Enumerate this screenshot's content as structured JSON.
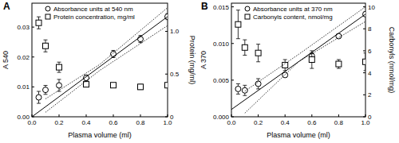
{
  "chart_data": [
    {
      "type": "scatter",
      "title": "A",
      "x_label": "Plasma volume (ml)",
      "y_label": "A 540",
      "y2_label": "Protein (mg/ml)",
      "xlim": [
        0,
        1
      ],
      "xticks": [
        {
          "value": 0,
          "label": "0.0"
        },
        0.2,
        0.4,
        0.6,
        0.8,
        {
          "value": 1,
          "label": "1.0"
        }
      ],
      "ylim": [
        0,
        0.038
      ],
      "yticks": [
        {
          "value": 0,
          "label": "0.00"
        },
        0.01,
        0.02,
        0.03
      ],
      "y2lim": [
        0,
        1.33
      ],
      "y2ticks": [
        0,
        0.5,
        {
          "value": 1,
          "label": "1.0"
        }
      ],
      "legend": "upper left",
      "series": [
        {
          "name": "Absorbance units at 540 nm",
          "marker": "circle",
          "color": "#000000",
          "x": [
            0.05,
            0.1,
            0.2,
            0.4,
            0.6,
            0.8,
            1.0
          ],
          "values": [
            0.0065,
            0.009,
            0.0105,
            0.013,
            0.021,
            0.026,
            0.0335
          ],
          "errors": [
            0.002,
            0.0015,
            0.002,
            0.001,
            0.0012,
            0.0012,
            0.001
          ]
        },
        {
          "name": "Protein concentration, mg/ml",
          "marker": "square",
          "color": "#000000",
          "axis": "y2",
          "x": [
            0.05,
            0.1,
            0.2,
            0.4,
            0.6,
            0.8,
            1.0
          ],
          "values": [
            1.1,
            0.83,
            0.58,
            0.38,
            0.37,
            0.35,
            0.37
          ],
          "errors": [
            0.07,
            0.07,
            0.06,
            0.03,
            0.02,
            0.03,
            0.02
          ]
        },
        {
          "type": "line",
          "line_style": "solid",
          "color": "#000000",
          "x": [
            0,
            1
          ],
          "values": [
            0,
            0.0335
          ]
        },
        {
          "type": "line",
          "line_style": "dotted",
          "color": "#000000",
          "x": [
            0.1,
            0.5,
            1.0
          ],
          "values": [
            0.006,
            0.0175,
            0.0365
          ]
        },
        {
          "type": "line",
          "line_style": "dotted",
          "color": "#000000",
          "x": [
            0.1,
            0.5,
            1.0
          ],
          "values": [
            0.0015,
            0.0155,
            0.0305
          ]
        }
      ]
    },
    {
      "type": "scatter",
      "title": "B",
      "x_label": "Plasma volume (ml)",
      "y_label": "A 370",
      "y2_label": "Carbonyls (nmol/mg)",
      "xlim": [
        0,
        1
      ],
      "xticks": [
        {
          "value": 0,
          "label": "0.0"
        },
        0.2,
        0.4,
        0.6,
        0.8,
        {
          "value": 1,
          "label": "1.0"
        }
      ],
      "ylim": [
        0,
        0.0155
      ],
      "yticks": [
        {
          "value": 0,
          "label": "0.000"
        },
        {
          "value": 0.005,
          "label": "0.005"
        },
        {
          "value": 0.01,
          "label": "0.010"
        },
        {
          "value": 0.015,
          "label": "0.015"
        }
      ],
      "y2lim": [
        0,
        10.33
      ],
      "y2ticks": [
        0,
        2,
        4,
        6,
        8,
        10
      ],
      "legend": "upper left",
      "series": [
        {
          "name": "Absorbance units at 370 nm",
          "marker": "circle",
          "color": "#000000",
          "x": [
            0.05,
            0.1,
            0.2,
            0.4,
            0.6,
            0.8,
            1.0
          ],
          "values": [
            0.0038,
            0.0036,
            0.0045,
            0.0057,
            0.0083,
            0.011,
            0.014
          ],
          "errors": [
            0.0007,
            0.0007,
            0.0007,
            0.0003,
            0.0004,
            0.0003,
            0.0003
          ]
        },
        {
          "name": "Carbonyls content, nmol/mg",
          "marker": "square",
          "color": "#000000",
          "axis": "y2",
          "x": [
            0.05,
            0.1,
            0.2,
            0.4,
            0.6,
            0.8,
            1.0
          ],
          "values": [
            8.4,
            6.3,
            5.8,
            4.7,
            5.2,
            4.8,
            5.0
          ],
          "errors": [
            1.3,
            0.7,
            0.8,
            0.5,
            0.8,
            0.4,
            0.8
          ]
        },
        {
          "type": "line",
          "line_style": "solid",
          "color": "#000000",
          "x": [
            0,
            1
          ],
          "values": [
            0.001,
            0.014
          ]
        },
        {
          "type": "line",
          "line_style": "dotted",
          "color": "#000000",
          "x": [
            0.1,
            0.5,
            1.0
          ],
          "values": [
            0.0035,
            0.0085,
            0.015
          ]
        },
        {
          "type": "line",
          "line_style": "dotted",
          "color": "#000000",
          "x": [
            0.1,
            0.5,
            1.0
          ],
          "values": [
            0.0005,
            0.0075,
            0.013
          ]
        }
      ]
    }
  ]
}
